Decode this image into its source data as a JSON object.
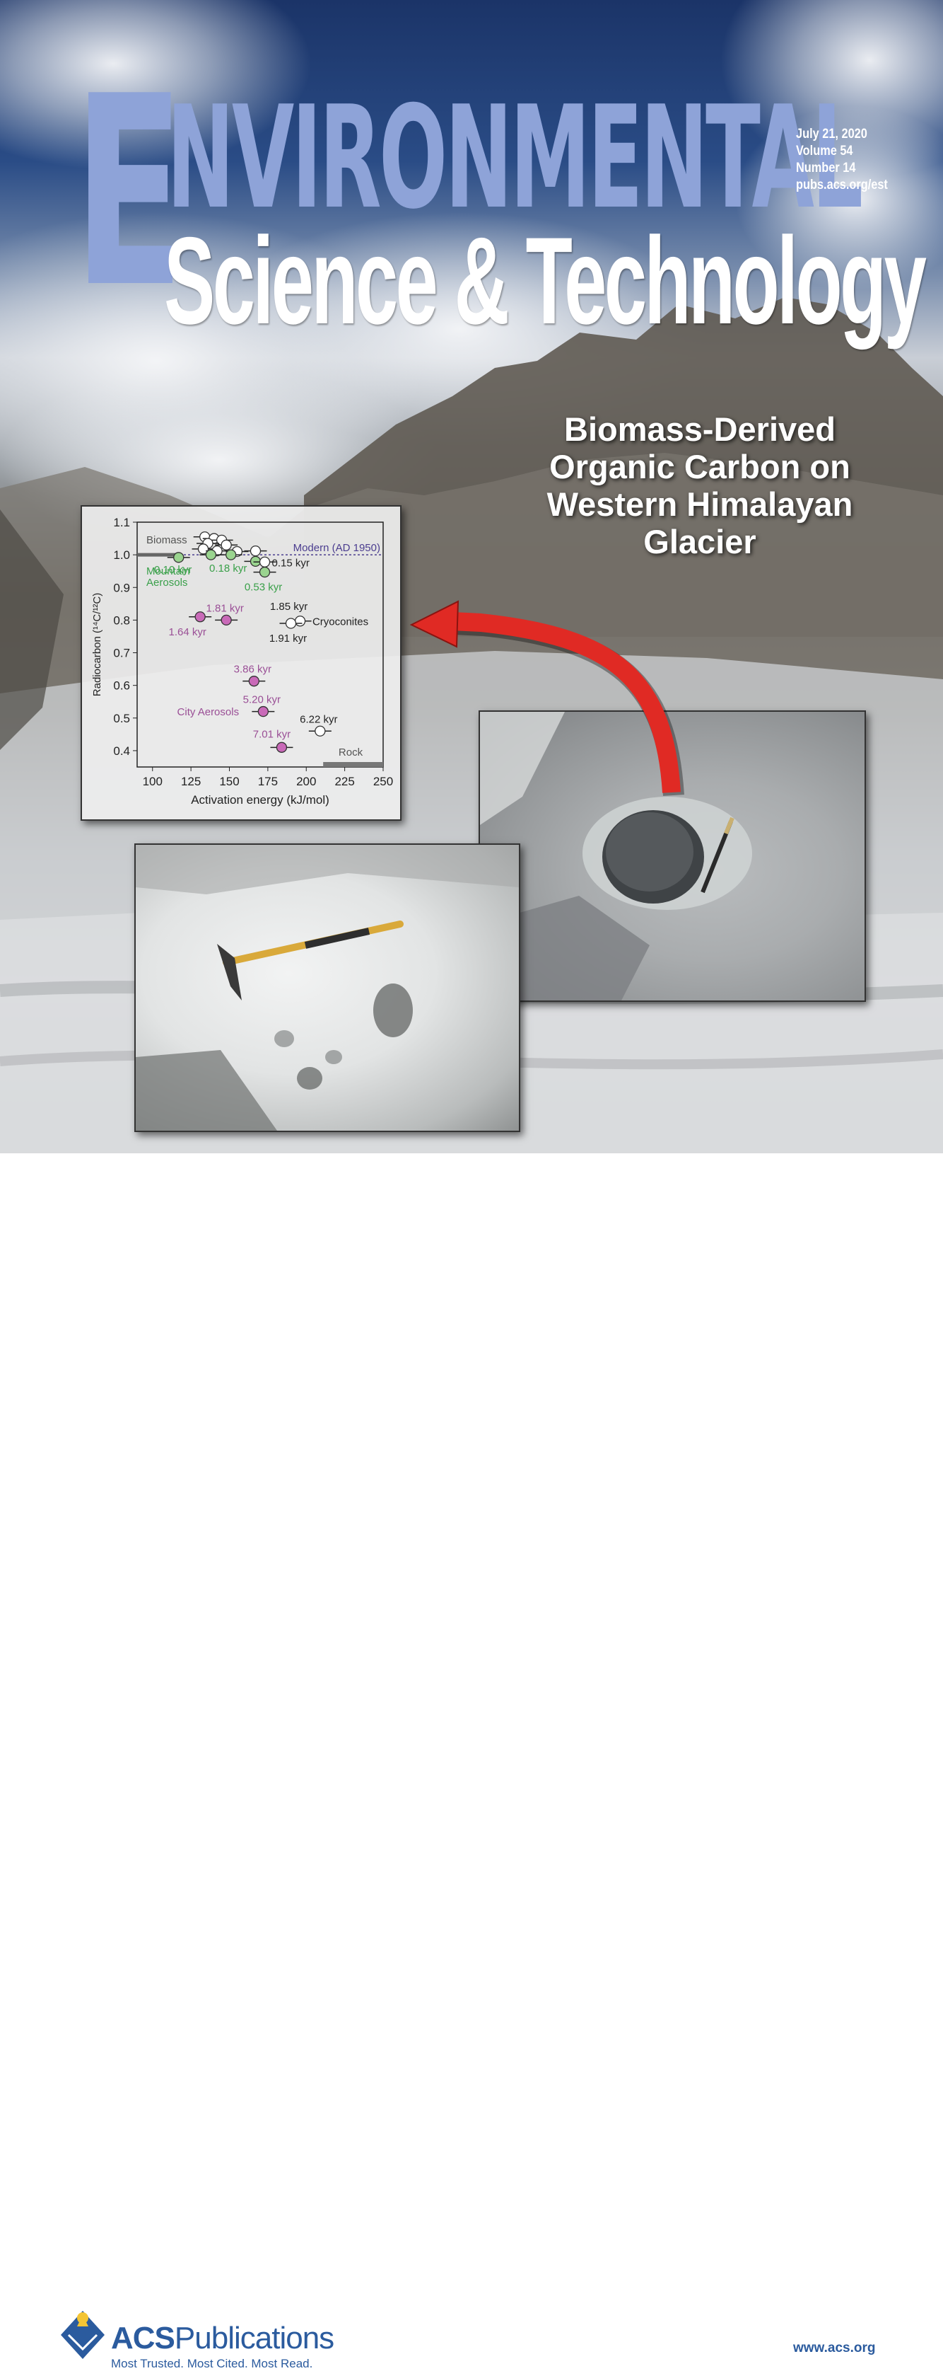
{
  "masthead": {
    "line1_initial": "E",
    "line1_rest": "nvironmental",
    "line2": "Science & Technology"
  },
  "issue_info": {
    "date": "July 21, 2020",
    "volume": "Volume 54",
    "number": "Number 14",
    "url": "pubs.acs.org/est"
  },
  "headline": {
    "lines": [
      "Biomass-Derived",
      "Organic Carbon on",
      "Western Himalayan",
      "Glacier"
    ]
  },
  "chart_data": {
    "type": "scatter",
    "title": "",
    "xlabel": "Activation energy (kJ/mol)",
    "ylabel": "Radiocarbon (¹⁴C/¹²C)",
    "xlim": [
      90,
      250
    ],
    "ylim": [
      0.35,
      1.1
    ],
    "xticks": [
      "100",
      "125",
      "150",
      "175",
      "200",
      "225",
      "250"
    ],
    "yticks": [
      "0.4",
      "0.5",
      "0.6",
      "0.7",
      "0.8",
      "0.9",
      "1.0",
      "1.1"
    ],
    "reference_line": {
      "label": "Modern (AD 1950)",
      "y": 1.0,
      "color": "#4b3d8f"
    },
    "group_labels": [
      {
        "text": "Biomass",
        "x": 96,
        "y": 1.035,
        "color": "#555555"
      },
      {
        "text": "Mountain",
        "x": 96,
        "y": 0.94,
        "color": "#3aa04a"
      },
      {
        "text": "Aerosols",
        "x": 96,
        "y": 0.905,
        "color": "#3aa04a"
      },
      {
        "text": "Cryoconites",
        "x": 204,
        "y": 0.785,
        "color": "#222222"
      },
      {
        "text": "City Aerosols",
        "x": 116,
        "y": 0.508,
        "color": "#9a4f96"
      },
      {
        "text": "Rock",
        "x": 221,
        "y": 0.385,
        "color": "#555555"
      }
    ],
    "series": [
      {
        "color": "#ffffff",
        "points": [
          {
            "x": 134,
            "y": 1.055
          },
          {
            "x": 140,
            "y": 1.05
          },
          {
            "x": 145,
            "y": 1.045
          },
          {
            "x": 136,
            "y": 1.035
          },
          {
            "x": 148,
            "y": 1.03
          },
          {
            "x": 133,
            "y": 1.018
          },
          {
            "x": 142,
            "y": 1.012
          },
          {
            "x": 155,
            "y": 1.01
          },
          {
            "x": 167,
            "y": 1.012
          }
        ]
      },
      {
        "color": "#9ad48f",
        "points": [
          {
            "x": 117,
            "y": 0.992,
            "label": "0.10 kyr"
          },
          {
            "x": 138,
            "y": 1.0
          },
          {
            "x": 151,
            "y": 1.0,
            "label": "0.18 kyr"
          },
          {
            "x": 167,
            "y": 0.98
          },
          {
            "x": 173,
            "y": 0.947,
            "label": "0.53 kyr"
          }
        ]
      },
      {
        "color": "#ffffff",
        "points": [
          {
            "x": 173,
            "y": 0.978,
            "label": "0.15 kyr"
          },
          {
            "x": 196,
            "y": 0.797,
            "label": "1.85 kyr"
          },
          {
            "x": 190,
            "y": 0.79,
            "label": "1.91 kyr"
          },
          {
            "x": 209,
            "y": 0.46,
            "label": "6.22 kyr"
          }
        ]
      },
      {
        "color": "#c96ab8",
        "points": [
          {
            "x": 131,
            "y": 0.81,
            "label": "1.64 kyr"
          },
          {
            "x": 148,
            "y": 0.8,
            "label": "1.81 kyr"
          },
          {
            "x": 166,
            "y": 0.613,
            "label": "3.86 kyr"
          },
          {
            "x": 172,
            "y": 0.52,
            "label": "5.20 kyr"
          },
          {
            "x": 184,
            "y": 0.41,
            "label": "7.01 kyr"
          }
        ]
      }
    ],
    "grid": false
  },
  "footer": {
    "publisher_bold": "ACS",
    "publisher_rest": "Publications",
    "tagline": "Most Trusted. Most Cited. Most Read.",
    "website": "www.acs.org"
  },
  "colors": {
    "masthead_blue": "#8ea3d8",
    "acs_blue": "#2b5b9e",
    "arrow_red": "#e02a24"
  }
}
